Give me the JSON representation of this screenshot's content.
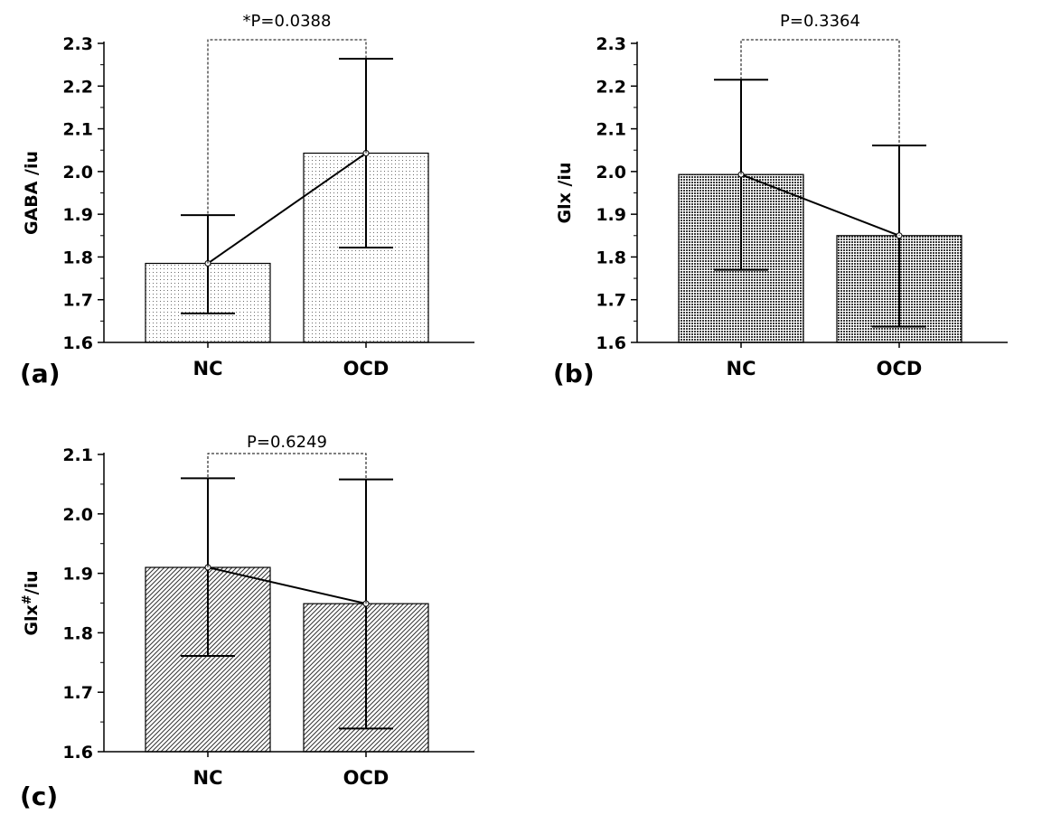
{
  "chart_data": [
    {
      "type": "bar",
      "panel": "(a)",
      "categories": [
        "NC",
        "OCD"
      ],
      "values": [
        1.785,
        2.043
      ],
      "error_low": [
        1.668,
        1.822
      ],
      "error_high": [
        1.898,
        2.264
      ],
      "ylabel": "GABA /iu",
      "ylim": [
        1.6,
        2.3
      ],
      "yticks": [
        "1.6",
        "1.7",
        "1.8",
        "1.9",
        "2.0",
        "2.1",
        "2.2",
        "2.3"
      ],
      "annotation": "*P=0.0388",
      "pattern": "dots-sparse"
    },
    {
      "type": "bar",
      "panel": "(b)",
      "categories": [
        "NC",
        "OCD"
      ],
      "values": [
        1.993,
        1.85
      ],
      "error_low": [
        1.77,
        1.637
      ],
      "error_high": [
        2.215,
        2.061
      ],
      "ylabel": "Glx /iu",
      "ylim": [
        1.6,
        2.3
      ],
      "yticks": [
        "1.6",
        "1.7",
        "1.8",
        "1.9",
        "2.0",
        "2.1",
        "2.2",
        "2.3"
      ],
      "annotation": "P=0.3364",
      "pattern": "dots-dense"
    },
    {
      "type": "bar",
      "panel": "(c)",
      "categories": [
        "NC",
        "OCD"
      ],
      "values": [
        1.91,
        1.849
      ],
      "error_low": [
        1.761,
        1.639
      ],
      "error_high": [
        2.06,
        2.058
      ],
      "ylabel": "Glx",
      "ylabel_sup": "#",
      "ylabel_unit": "/iu",
      "ylim": [
        1.6,
        2.1
      ],
      "yticks": [
        "1.6",
        "1.7",
        "1.8",
        "1.9",
        "2.0",
        "2.1"
      ],
      "annotation": "P=0.6249",
      "pattern": "hatch"
    }
  ]
}
